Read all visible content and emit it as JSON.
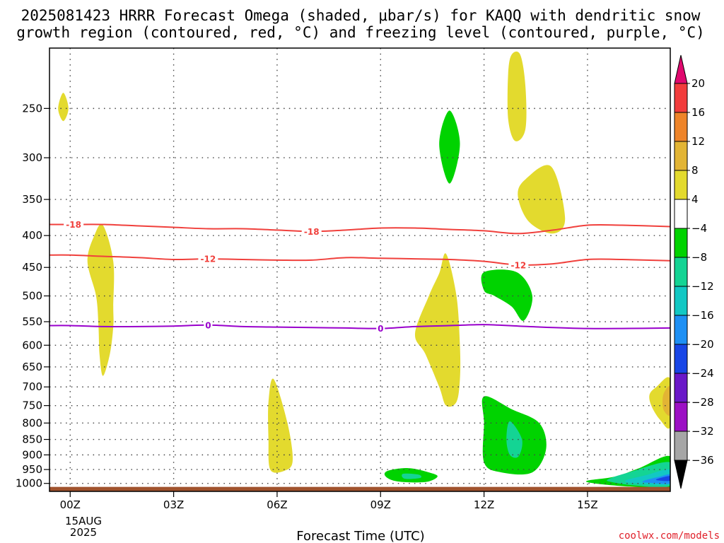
{
  "title": {
    "line1": "2025081423 HRRR Forecast Omega (shaded, μbar/s) for KAQQ with dendritic snow",
    "line2": "growth region (contoured, red, °C) and freezing level (contoured, purple, °C)"
  },
  "credit": "coolwx.com/models",
  "chart_data": {
    "type": "heatmap",
    "title": "2025081423 HRRR Forecast Omega (shaded, μbar/s) for KAQQ with dendritic snow growth region (contoured, red, °C) and freezing level (contoured, purple, °C)",
    "xlabel": "Forecast Time (UTC)",
    "ylabel": "",
    "x_unit": "forecast hour",
    "xlim": [
      -0.6,
      17.4
    ],
    "ylim_pressure_hpa": [
      1030,
      200
    ],
    "y_scale": "log-pressure (inverted)",
    "grid": true,
    "x_ticks": [
      {
        "label": "00Z",
        "value": 0
      },
      {
        "label": "03Z",
        "value": 3
      },
      {
        "label": "06Z",
        "value": 6
      },
      {
        "label": "09Z",
        "value": 9
      },
      {
        "label": "12Z",
        "value": 12
      },
      {
        "label": "15Z",
        "value": 15
      }
    ],
    "x_date_label": [
      "15AUG",
      "2025"
    ],
    "y_ticks": [
      250,
      300,
      350,
      400,
      450,
      500,
      550,
      600,
      650,
      700,
      750,
      800,
      850,
      900,
      950,
      1000
    ],
    "colorbar": {
      "label_values": [
        20,
        16,
        12,
        8,
        4,
        -4,
        -8,
        -12,
        -16,
        -20,
        -24,
        -28,
        -32,
        -36
      ],
      "above_top_color": "#e0086e",
      "below_bottom_color": "#000000",
      "bins": [
        {
          "from": 16,
          "to": 20,
          "color": "#f23c3c"
        },
        {
          "from": 12,
          "to": 16,
          "color": "#ee8429"
        },
        {
          "from": 8,
          "to": 12,
          "color": "#e2b434"
        },
        {
          "from": 4,
          "to": 8,
          "color": "#e3da2e"
        },
        {
          "from": -4,
          "to": 4,
          "color": "#ffffff"
        },
        {
          "from": -8,
          "to": -4,
          "color": "#00d300"
        },
        {
          "from": -12,
          "to": -8,
          "color": "#14d494"
        },
        {
          "from": -16,
          "to": -12,
          "color": "#12c8c4"
        },
        {
          "from": -20,
          "to": -16,
          "color": "#1e90f4"
        },
        {
          "from": -24,
          "to": -20,
          "color": "#1846e6"
        },
        {
          "from": -28,
          "to": -24,
          "color": "#6a18c8"
        },
        {
          "from": -32,
          "to": -28,
          "color": "#9c10c4"
        },
        {
          "from": -36,
          "to": -32,
          "color": "#a6a6a6"
        }
      ]
    },
    "shaded_regions": [
      {
        "value": 6,
        "points": [
          [
            -0.2,
            262
          ],
          [
            -0.05,
            250
          ],
          [
            -0.2,
            236
          ],
          [
            -0.35,
            250
          ]
        ]
      },
      {
        "value": 6,
        "points": [
          [
            0.95,
            385
          ],
          [
            1.25,
            440
          ],
          [
            1.25,
            520
          ],
          [
            1.25,
            560
          ],
          [
            1.15,
            620
          ],
          [
            0.95,
            672
          ],
          [
            0.85,
            620
          ],
          [
            0.82,
            560
          ],
          [
            0.75,
            500
          ],
          [
            0.5,
            440
          ],
          [
            0.7,
            400
          ]
        ]
      },
      {
        "value": 6,
        "points": [
          [
            5.9,
            680
          ],
          [
            6.3,
            800
          ],
          [
            6.45,
            920
          ],
          [
            6.2,
            955
          ],
          [
            5.8,
            950
          ],
          [
            5.75,
            850
          ],
          [
            5.75,
            740
          ]
        ]
      },
      {
        "value": 6,
        "points": [
          [
            10.9,
            428
          ],
          [
            11.2,
            500
          ],
          [
            11.3,
            600
          ],
          [
            11.3,
            680
          ],
          [
            11.2,
            740
          ],
          [
            10.9,
            750
          ],
          [
            10.7,
            700
          ],
          [
            10.3,
            620
          ],
          [
            10.0,
            575
          ],
          [
            10.4,
            500
          ],
          [
            10.7,
            460
          ]
        ]
      },
      {
        "value": 6,
        "points": [
          [
            13.05,
            205
          ],
          [
            13.2,
            230
          ],
          [
            13.2,
            270
          ],
          [
            12.9,
            282
          ],
          [
            12.7,
            260
          ],
          [
            12.7,
            220
          ],
          [
            12.8,
            205
          ]
        ]
      },
      {
        "value": 6,
        "points": [
          [
            13.95,
            310
          ],
          [
            14.35,
            375
          ],
          [
            14.0,
            397
          ],
          [
            13.3,
            380
          ],
          [
            12.98,
            345
          ],
          [
            13.2,
            325
          ]
        ]
      },
      {
        "value": 6,
        "points": [
          [
            17.4,
            680
          ],
          [
            17.0,
            700
          ],
          [
            16.8,
            720
          ],
          [
            16.85,
            750
          ],
          [
            17.1,
            790
          ],
          [
            17.4,
            810
          ]
        ]
      },
      {
        "value": 10,
        "points": [
          [
            17.4,
            700
          ],
          [
            17.2,
            720
          ],
          [
            17.2,
            760
          ],
          [
            17.4,
            775
          ]
        ]
      },
      {
        "value": -6,
        "points": [
          [
            11.0,
            252
          ],
          [
            11.3,
            285
          ],
          [
            11.0,
            330
          ],
          [
            10.7,
            285
          ]
        ]
      },
      {
        "value": -6,
        "points": [
          [
            12.0,
            458
          ],
          [
            12.95,
            458
          ],
          [
            13.4,
            500
          ],
          [
            13.15,
            548
          ],
          [
            12.8,
            520
          ],
          [
            12.3,
            500
          ],
          [
            12.0,
            490
          ]
        ]
      },
      {
        "value": -6,
        "points": [
          [
            12.0,
            725
          ],
          [
            12.8,
            760
          ],
          [
            13.6,
            800
          ],
          [
            13.8,
            880
          ],
          [
            13.4,
            960
          ],
          [
            12.5,
            960
          ],
          [
            12.0,
            925
          ],
          [
            12.0,
            800
          ]
        ]
      },
      {
        "value": -10,
        "points": [
          [
            12.75,
            795
          ],
          [
            13.1,
            850
          ],
          [
            13.0,
            905
          ],
          [
            12.75,
            900
          ],
          [
            12.65,
            850
          ]
        ]
      },
      {
        "value": -6,
        "points": [
          [
            9.2,
            955
          ],
          [
            9.8,
            945
          ],
          [
            10.4,
            960
          ],
          [
            10.65,
            975
          ],
          [
            10.3,
            995
          ],
          [
            9.5,
            993
          ],
          [
            9.15,
            975
          ]
        ]
      },
      {
        "value": -10,
        "points": [
          [
            9.65,
            965
          ],
          [
            10.1,
            968
          ],
          [
            10.15,
            980
          ],
          [
            9.7,
            983
          ]
        ]
      },
      {
        "value": -6,
        "points": [
          [
            15.0,
            990
          ],
          [
            15.8,
            975
          ],
          [
            16.5,
            945
          ],
          [
            17.4,
            905
          ],
          [
            17.4,
            1012
          ],
          [
            16.3,
            1012
          ],
          [
            15.2,
            1000
          ]
        ]
      },
      {
        "value": -10,
        "points": [
          [
            15.6,
            985
          ],
          [
            16.2,
            960
          ],
          [
            17.4,
            925
          ],
          [
            17.4,
            1008
          ],
          [
            16.4,
            1008
          ],
          [
            15.7,
            995
          ]
        ]
      },
      {
        "value": -14,
        "points": [
          [
            16.1,
            990
          ],
          [
            16.7,
            970
          ],
          [
            17.4,
            950
          ],
          [
            17.4,
            1003
          ],
          [
            16.4,
            1000
          ]
        ]
      },
      {
        "value": -18,
        "points": [
          [
            16.6,
            992
          ],
          [
            17.1,
            975
          ],
          [
            17.4,
            968
          ],
          [
            17.4,
            1000
          ],
          [
            16.8,
            998
          ]
        ]
      },
      {
        "value": -22,
        "points": [
          [
            17.0,
            985
          ],
          [
            17.4,
            973
          ],
          [
            17.4,
            990
          ],
          [
            17.1,
            990
          ]
        ]
      }
    ],
    "series": [
      {
        "name": "-18",
        "color": "#f0403c",
        "x": [
          -0.6,
          0,
          1,
          2,
          3,
          4,
          5,
          6,
          7,
          8,
          9,
          10,
          11,
          12,
          13,
          14,
          15,
          16,
          17.4
        ],
        "y": [
          384,
          384,
          384,
          386,
          388,
          390,
          390,
          392,
          394,
          392,
          389,
          389,
          391,
          393,
          397,
          392,
          385,
          385,
          387
        ]
      },
      {
        "name": "-12",
        "color": "#f0403c",
        "x": [
          -0.6,
          0,
          1,
          2,
          3,
          4,
          5,
          6,
          7,
          8,
          9,
          10,
          11,
          12,
          13,
          14,
          15,
          16,
          17.4
        ],
        "y": [
          430,
          430,
          432,
          434,
          437,
          436,
          437,
          438,
          438,
          434,
          435,
          436,
          437,
          440,
          446,
          444,
          437,
          437,
          439
        ]
      },
      {
        "name": "0",
        "color": "#9900cc",
        "x": [
          -0.6,
          0,
          1,
          2,
          3,
          4,
          5,
          6,
          7,
          8,
          9,
          10,
          11,
          12,
          13,
          14,
          15,
          16,
          17.4
        ],
        "y": [
          558,
          558,
          560,
          560,
          559,
          557,
          560,
          561,
          562,
          563,
          564,
          560,
          558,
          556,
          559,
          562,
          564,
          564,
          563
        ]
      }
    ],
    "contour_labels": [
      {
        "text": "-18",
        "x": 0.1,
        "y": 384,
        "color": "#f0403c"
      },
      {
        "text": "-18",
        "x": 7.0,
        "y": 394,
        "color": "#f0403c"
      },
      {
        "text": "-12",
        "x": 4.0,
        "y": 436,
        "color": "#f0403c"
      },
      {
        "text": "-12",
        "x": 13.0,
        "y": 446,
        "color": "#f0403c"
      },
      {
        "text": "0",
        "x": 4.0,
        "y": 557,
        "color": "#9900cc"
      },
      {
        "text": "0",
        "x": 9.0,
        "y": 564,
        "color": "#9900cc"
      }
    ],
    "terrain": {
      "color": "#a0522d",
      "surface_pressure": 1013
    }
  }
}
